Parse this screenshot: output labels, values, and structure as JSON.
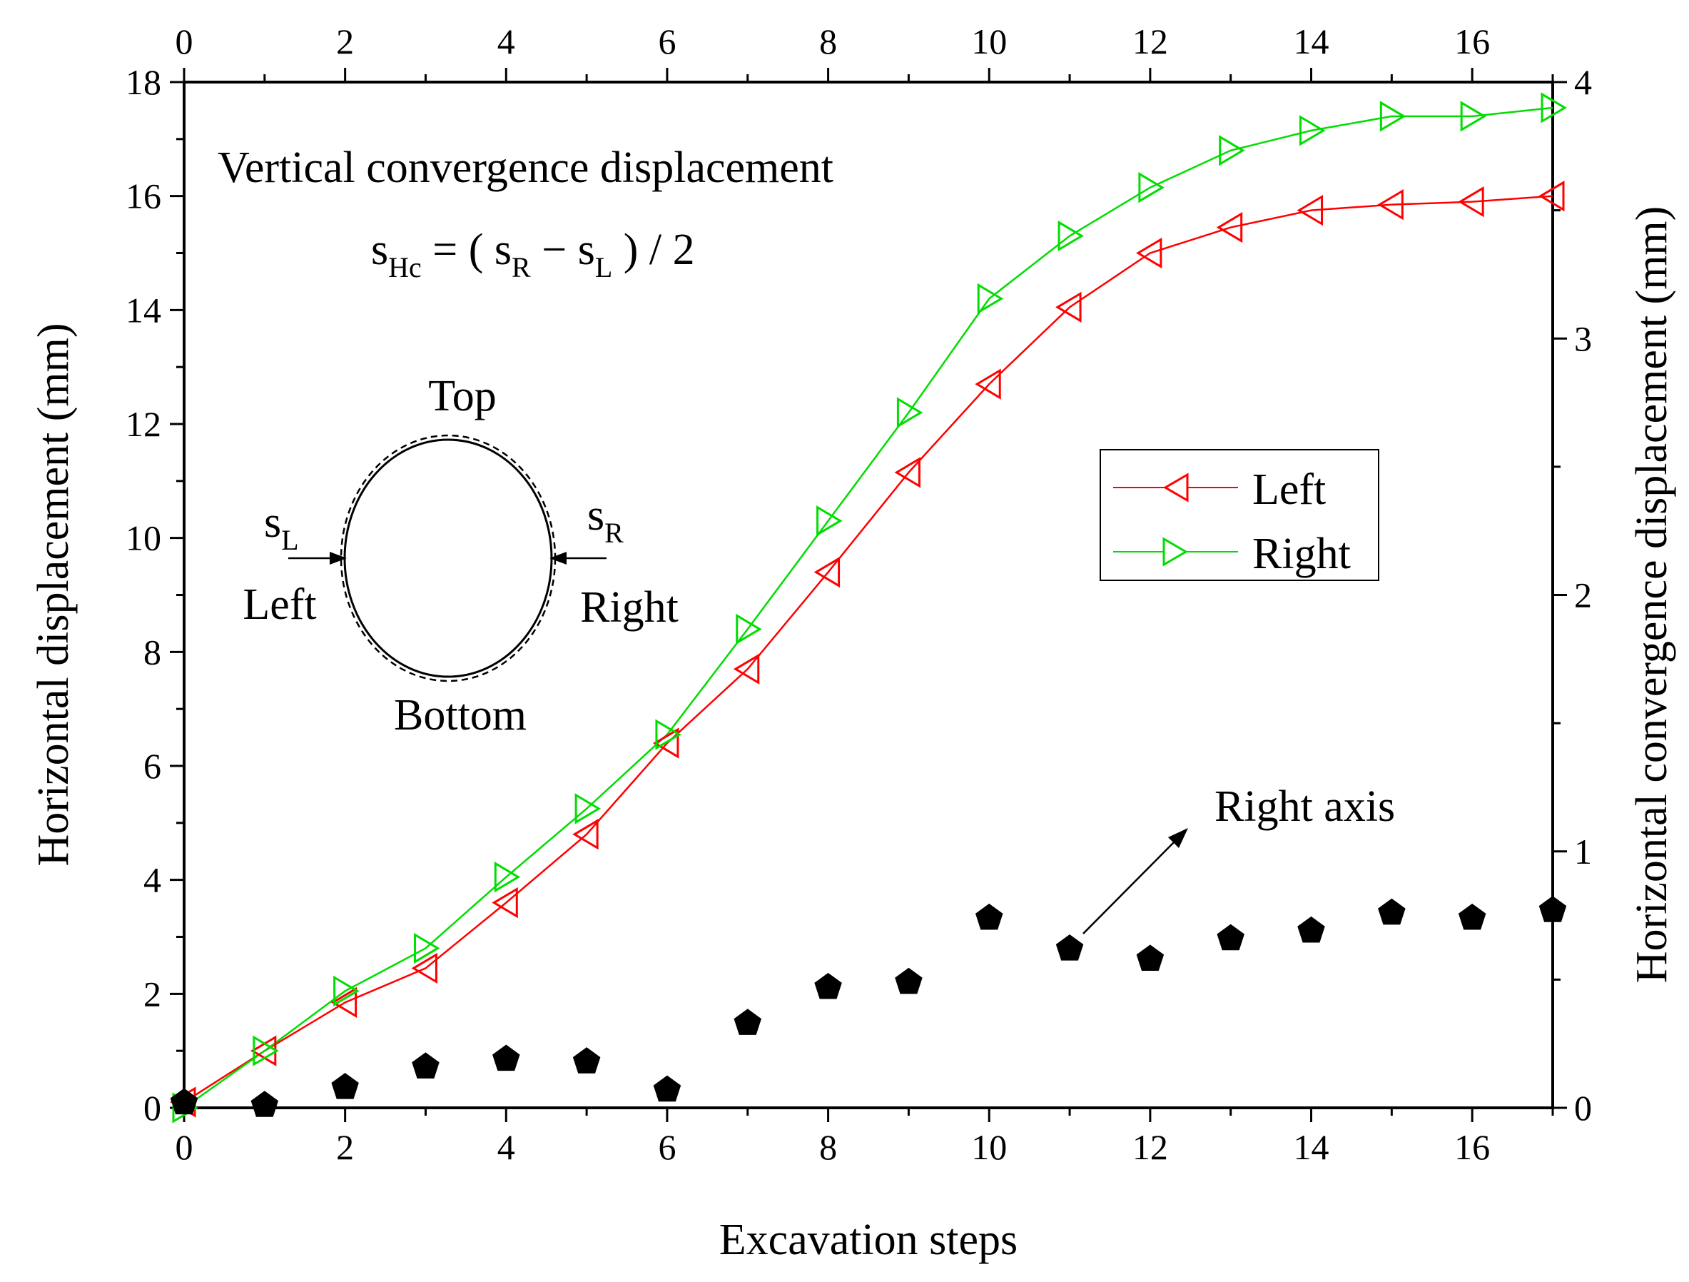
{
  "chart_data": {
    "type": "line",
    "xlabel": "Excavation steps",
    "ylabel": "Horizontal displacement (mm)",
    "ylabel_right": "Horizontal convergence displacement (mm)",
    "xlim": [
      0,
      17
    ],
    "ylim": [
      0,
      18
    ],
    "ylim_right": [
      0,
      4
    ],
    "x_ticks": [
      "0",
      "2",
      "4",
      "6",
      "8",
      "10",
      "12",
      "14",
      "16"
    ],
    "y_ticks": [
      "0",
      "2",
      "4",
      "6",
      "8",
      "10",
      "12",
      "14",
      "16",
      "18"
    ],
    "y_right_ticks": [
      "0",
      "1",
      "2",
      "3",
      "4"
    ],
    "x": [
      0,
      1,
      2,
      3,
      4,
      5,
      6,
      7,
      8,
      9,
      10,
      11,
      12,
      13,
      14,
      15,
      16,
      17
    ],
    "series": [
      {
        "name": "Left",
        "axis": "left",
        "color": "#ff0000",
        "marker": "triangle-left",
        "values": [
          0.1,
          1.0,
          1.85,
          2.45,
          3.6,
          4.8,
          6.4,
          7.7,
          9.4,
          11.15,
          12.7,
          14.05,
          15.0,
          15.45,
          15.75,
          15.85,
          15.9,
          16.0
        ]
      },
      {
        "name": "Right",
        "axis": "left",
        "color": "#00dd00",
        "marker": "triangle-right",
        "values": [
          0.0,
          1.0,
          2.05,
          2.8,
          4.05,
          5.25,
          6.55,
          8.4,
          10.3,
          12.2,
          14.2,
          15.3,
          16.15,
          16.8,
          17.15,
          17.4,
          17.4,
          17.55
        ]
      },
      {
        "name": "Horizontal convergence",
        "axis": "right",
        "color": "#000000",
        "marker": "pentagon",
        "values": [
          0.02,
          0.01,
          0.08,
          0.16,
          0.19,
          0.18,
          0.07,
          0.33,
          0.47,
          0.49,
          0.74,
          0.62,
          0.58,
          0.66,
          0.69,
          0.76,
          0.74,
          0.77
        ]
      }
    ],
    "legend": {
      "position": "right-middle",
      "entries": [
        "Left",
        "Right"
      ]
    },
    "annotations": {
      "title": "Vertical convergence displacement",
      "formula": {
        "s": "s",
        "sub_hc": "Hc",
        "eq": " = ( ",
        "s_r": "s",
        "sub_r": "R",
        "minus": " − ",
        "s_l": "s",
        "sub_l": "L",
        "end": " ) / 2"
      },
      "diagram": {
        "top": "Top",
        "bottom": "Bottom",
        "left": "Left",
        "right": "Right",
        "s_l": "s",
        "s_l_sub": "L",
        "s_r": "s",
        "s_r_sub": "R"
      },
      "right_axis_note": "Right axis"
    }
  }
}
